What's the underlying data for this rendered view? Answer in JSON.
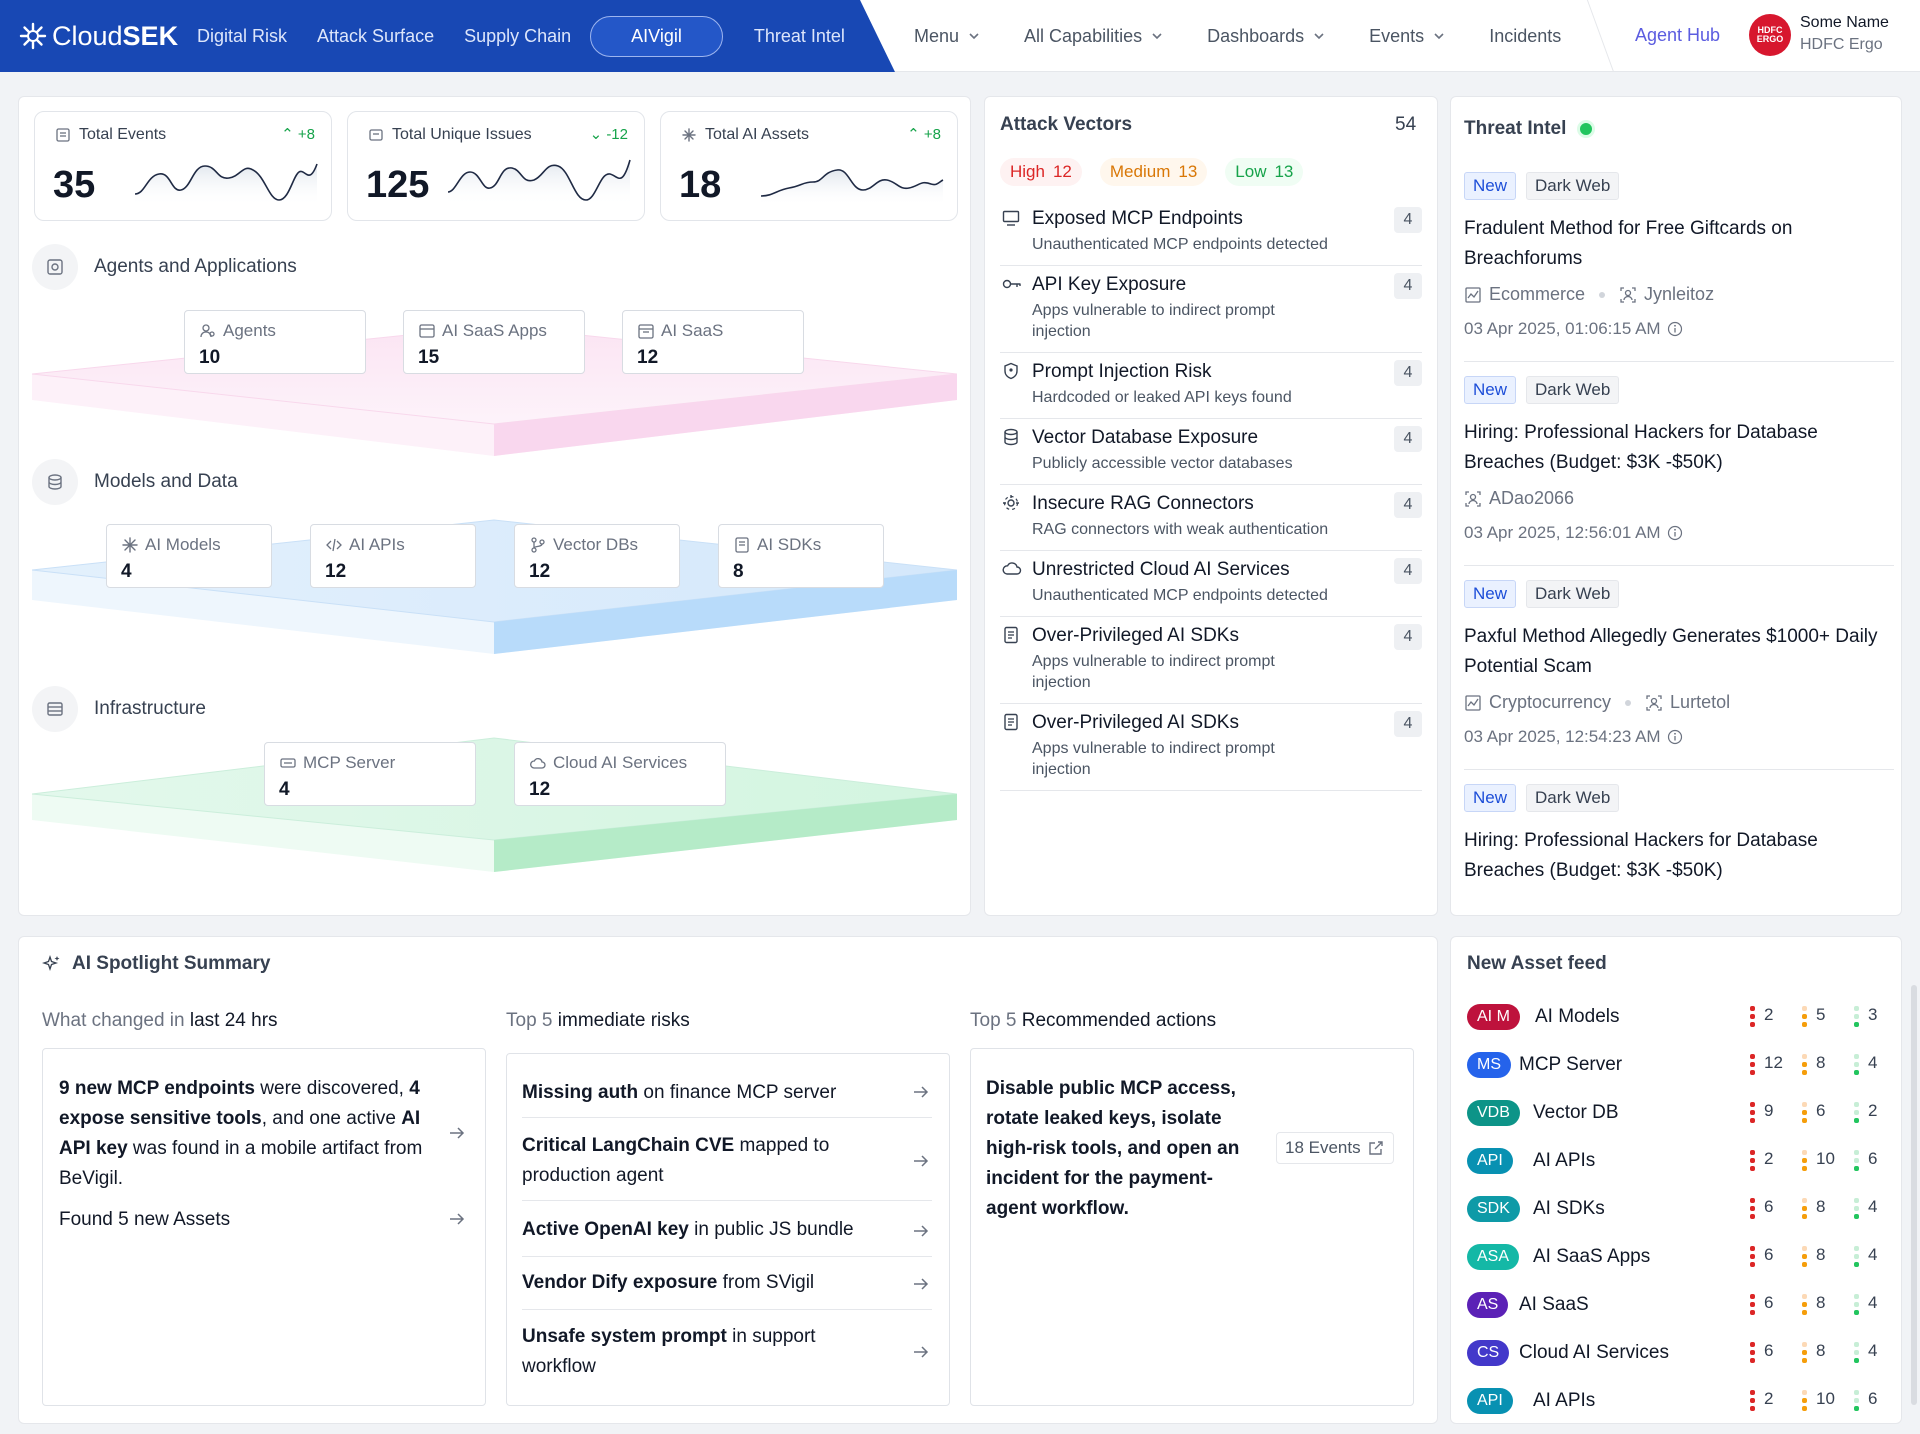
{
  "nav": {
    "brand": {
      "part1": "Cloud",
      "part2": "SEK"
    },
    "left_items": [
      "Digital Risk",
      "Attack Surface",
      "Supply Chain",
      "AIVigil",
      "Threat Intel"
    ],
    "active": "AIVigil",
    "right_items": [
      {
        "label": "Menu",
        "dropdown": true
      },
      {
        "label": "All Capabilities",
        "dropdown": true
      },
      {
        "label": "Dashboards",
        "dropdown": true
      },
      {
        "label": "Events",
        "dropdown": true
      },
      {
        "label": "Incidents",
        "dropdown": false
      }
    ],
    "agent_hub": "Agent Hub",
    "avatar_text": "HDFC ERGO",
    "user_name": "Some Name",
    "user_org": "HDFC Ergo"
  },
  "stats": [
    {
      "label": "Total Events",
      "delta": "+8",
      "value": "35",
      "icon": "list-icon",
      "trend": "up"
    },
    {
      "label": "Total Unique Issues",
      "delta": "-12",
      "value": "125",
      "icon": "issue-icon",
      "trend": "down"
    },
    {
      "label": "Total AI Assets",
      "delta": "+8",
      "value": "18",
      "icon": "ai-asset-icon",
      "trend": "up"
    }
  ],
  "layers": {
    "agents": {
      "title": "Agents and Applications",
      "items": [
        {
          "name": "Agents",
          "value": "10"
        },
        {
          "name": "AI SaaS Apps",
          "value": "15"
        },
        {
          "name": "AI SaaS",
          "value": "12"
        }
      ]
    },
    "models": {
      "title": "Models and Data",
      "items": [
        {
          "name": "AI Models",
          "value": "4"
        },
        {
          "name": "AI APIs",
          "value": "12"
        },
        {
          "name": "Vector DBs",
          "value": "12"
        },
        {
          "name": "AI SDKs",
          "value": "8"
        }
      ]
    },
    "infra": {
      "title": "Infrastructure",
      "items": [
        {
          "name": "MCP Server",
          "value": "4"
        },
        {
          "name": "Cloud AI Services",
          "value": "12"
        }
      ]
    }
  },
  "attack_vectors": {
    "title": "Attack Vectors",
    "count": "54",
    "severity": [
      {
        "label": "High",
        "value": "12",
        "color": "#dc2626",
        "bg": "#fef2f2"
      },
      {
        "label": "Medium",
        "value": "13",
        "color": "#d97706",
        "bg": "#fff7ed"
      },
      {
        "label": "Low",
        "value": "13",
        "color": "#16a34a",
        "bg": "#f0fdf4"
      }
    ],
    "items": [
      {
        "title": "Exposed MCP Endpoints",
        "desc": "Unauthenticated MCP endpoints detected",
        "count": "4",
        "icon": "monitor-icon"
      },
      {
        "title": "API Key Exposure",
        "desc": "Apps vulnerable to indirect prompt injection",
        "count": "4",
        "icon": "key-icon"
      },
      {
        "title": "Prompt Injection Risk",
        "desc": "Hardcoded or leaked API keys found",
        "count": "4",
        "icon": "shield-icon"
      },
      {
        "title": "Vector Database Exposure",
        "desc": "Publicly accessible vector databases",
        "count": "4",
        "icon": "database-icon"
      },
      {
        "title": "Insecure RAG Connectors",
        "desc": "RAG connectors with weak authentication",
        "count": "4",
        "icon": "connector-icon"
      },
      {
        "title": "Unrestricted Cloud AI Services",
        "desc": "Unauthenticated MCP endpoints detected",
        "count": "4",
        "icon": "cloud-icon"
      },
      {
        "title": "Over-Privileged AI SDKs",
        "desc": "Apps vulnerable to indirect prompt injection",
        "count": "4",
        "icon": "document-icon"
      },
      {
        "title": "Over-Privileged AI SDKs",
        "desc": "Apps vulnerable to indirect prompt injection",
        "count": "4",
        "icon": "document-icon"
      }
    ]
  },
  "threat_intel": {
    "title": "Threat Intel",
    "items": [
      {
        "tag1": "New",
        "tag2": "Dark Web",
        "headline": "Fradulent Method for Free Giftcards on Breachforums",
        "category": "Ecommerce",
        "actor": "Jynleitoz",
        "date": "03 Apr 2025, 01:06:15 AM"
      },
      {
        "tag1": "New",
        "tag2": "Dark Web",
        "headline": "Hiring: Professional Hackers for Database Breaches  (Budget: $3K -$50K)",
        "category": "",
        "actor": "ADao2066",
        "date": "03 Apr 2025, 12:56:01 AM"
      },
      {
        "tag1": "New",
        "tag2": "Dark Web",
        "headline": "Paxful Method Allegedly Generates $1000+ Daily Potential Scam",
        "category": "Cryptocurrency",
        "actor": "Lurtetol",
        "date": "03 Apr 2025, 12:54:23 AM"
      },
      {
        "tag1": "New",
        "tag2": "Dark Web",
        "headline": "Hiring: Professional Hackers for Database Breaches  (Budget: $3K -$50K)",
        "category": "",
        "actor": "",
        "date": ""
      }
    ]
  },
  "spotlight": {
    "title": "AI Spotlight Summary",
    "col1": {
      "pre": "What changed in ",
      "bold": "last 24 hrs"
    },
    "col2": {
      "pre": "Top 5 ",
      "bold": "immediate risks"
    },
    "col3": {
      "pre": "Top 5 ",
      "bold": "Recommended actions"
    },
    "changes": {
      "s1b": "9 new MCP endpoints",
      "s1": " were discovered, ",
      "s2b": "4 expose sensitive tools",
      "s2": ", and one active ",
      "s3b": "AI API key",
      "s3": " was found in a mobile artifact from BeVigil.",
      "found": "Found 5 new Assets"
    },
    "risks": [
      {
        "b": "Missing auth",
        "t": " on finance MCP server"
      },
      {
        "b": "Critical LangChain CVE",
        "t": " mapped to production agent"
      },
      {
        "b": "Active OpenAI key",
        "t": " in public JS bundle"
      },
      {
        "b": "Vendor Dify exposure",
        "t": " from SVigil"
      },
      {
        "b": "Unsafe system prompt",
        "t": " in support workflow"
      }
    ],
    "recommendation": "Disable public MCP access, rotate leaked keys, isolate high-risk tools, and open an incident for the payment-agent workflow.",
    "events_button": "18 Events"
  },
  "asset_feed": {
    "title": "New Asset feed",
    "rows": [
      {
        "badge": "AI M",
        "name": "AI Models",
        "color": "#be123c",
        "high": "2",
        "med": "5",
        "low": "3"
      },
      {
        "badge": "MS",
        "name": "MCP Server",
        "color": "#2563eb",
        "high": "12",
        "med": "8",
        "low": "4"
      },
      {
        "badge": "VDB",
        "name": "Vector DB",
        "color": "#0d9488",
        "high": "9",
        "med": "6",
        "low": "2"
      },
      {
        "badge": "API",
        "name": "AI APIs",
        "color": "#0891b2",
        "high": "2",
        "med": "10",
        "low": "6"
      },
      {
        "badge": "SDK",
        "name": "AI SDKs",
        "color": "#0e9aa7",
        "high": "6",
        "med": "8",
        "low": "4"
      },
      {
        "badge": "ASA",
        "name": "AI SaaS Apps",
        "color": "#14b8a6",
        "high": "6",
        "med": "8",
        "low": "4"
      },
      {
        "badge": "AS",
        "name": "AI SaaS",
        "color": "#5b21b6",
        "high": "6",
        "med": "8",
        "low": "4"
      },
      {
        "badge": "CS",
        "name": "Cloud AI Services",
        "color": "#4338ca",
        "high": "6",
        "med": "8",
        "low": "4"
      },
      {
        "badge": "API",
        "name": "AI APIs",
        "color": "#0891b2",
        "high": "2",
        "med": "10",
        "low": "6"
      }
    ]
  }
}
